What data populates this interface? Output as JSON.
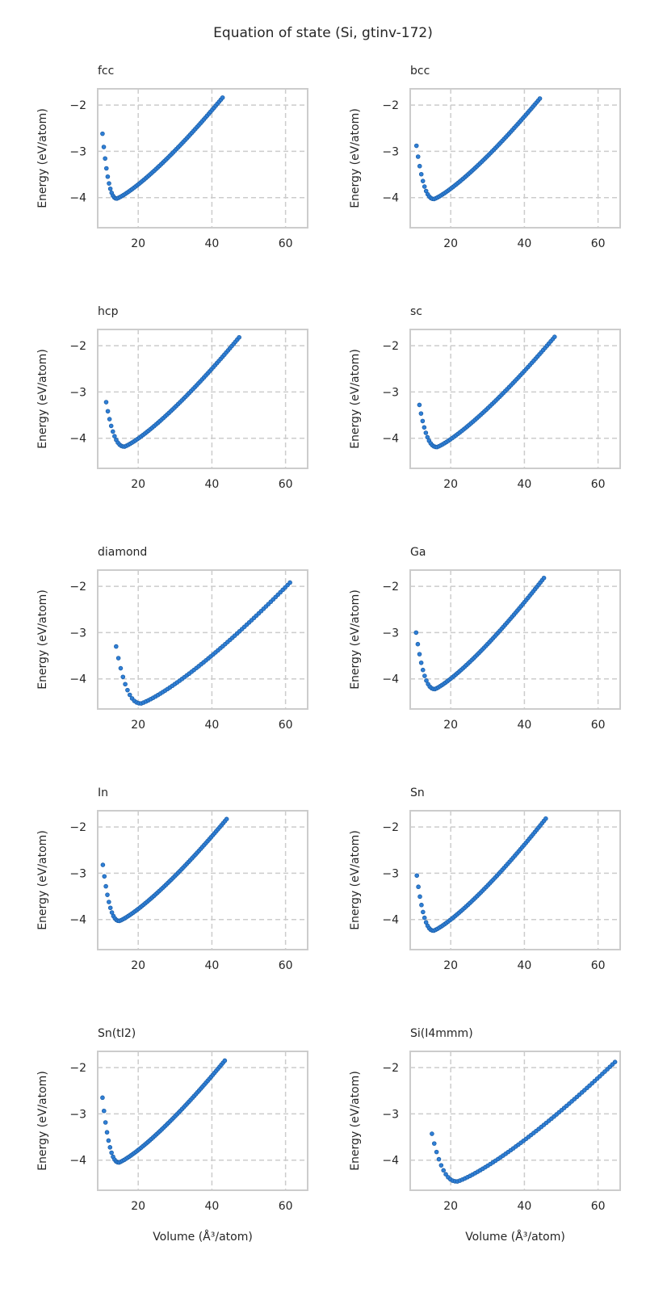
{
  "figure": {
    "title": "Equation of state (Si, gtinv-172)",
    "xlabel": "Volume (Å³/atom)",
    "ylabel": "Energy (eV/atom)"
  },
  "chart_data": [
    {
      "type": "scatter",
      "title": "fcc",
      "xlim": [
        9,
        66
      ],
      "ylim": [
        -4.65,
        -1.65
      ],
      "xticks": [
        20,
        40,
        60
      ],
      "yticks": [
        -4,
        -3,
        -2
      ],
      "grid": true,
      "v_min": 10.3,
      "v_eq": 14.2,
      "v_max": 42.9,
      "e_start": -2.62,
      "e_min": -4.02,
      "e_end": -1.84
    },
    {
      "type": "scatter",
      "title": "bcc",
      "xlim": [
        9,
        66
      ],
      "ylim": [
        -4.65,
        -1.65
      ],
      "xticks": [
        20,
        40,
        60
      ],
      "yticks": [
        -4,
        -3,
        -2
      ],
      "grid": true,
      "v_min": 10.7,
      "v_eq": 15.5,
      "v_max": 44.2,
      "e_start": -2.88,
      "e_min": -4.03,
      "e_end": -1.86
    },
    {
      "type": "scatter",
      "title": "hcp",
      "xlim": [
        9,
        66
      ],
      "ylim": [
        -4.65,
        -1.65
      ],
      "xticks": [
        20,
        40,
        60
      ],
      "yticks": [
        -4,
        -3,
        -2
      ],
      "grid": true,
      "v_min": 11.3,
      "v_eq": 16.3,
      "v_max": 47.4,
      "e_start": -3.22,
      "e_min": -4.18,
      "e_end": -1.82
    },
    {
      "type": "scatter",
      "title": "sc",
      "xlim": [
        9,
        66
      ],
      "ylim": [
        -4.65,
        -1.65
      ],
      "xticks": [
        20,
        40,
        60
      ],
      "yticks": [
        -4,
        -3,
        -2
      ],
      "grid": true,
      "v_min": 11.5,
      "v_eq": 16.3,
      "v_max": 48.2,
      "e_start": -3.28,
      "e_min": -4.19,
      "e_end": -1.81
    },
    {
      "type": "scatter",
      "title": "diamond",
      "xlim": [
        9,
        66
      ],
      "ylim": [
        -4.65,
        -1.65
      ],
      "xticks": [
        20,
        40,
        60
      ],
      "yticks": [
        -4,
        -3,
        -2
      ],
      "grid": true,
      "v_min": 14.0,
      "v_eq": 20.8,
      "v_max": 61.2,
      "e_start": -3.3,
      "e_min": -4.53,
      "e_end": -1.92
    },
    {
      "type": "scatter",
      "title": "Ga",
      "xlim": [
        9,
        66
      ],
      "ylim": [
        -4.65,
        -1.65
      ],
      "xticks": [
        20,
        40,
        60
      ],
      "yticks": [
        -4,
        -3,
        -2
      ],
      "grid": true,
      "v_min": 10.6,
      "v_eq": 15.7,
      "v_max": 45.3,
      "e_start": -3.0,
      "e_min": -4.22,
      "e_end": -1.82
    },
    {
      "type": "scatter",
      "title": "In",
      "xlim": [
        9,
        66
      ],
      "ylim": [
        -4.65,
        -1.65
      ],
      "xticks": [
        20,
        40,
        60
      ],
      "yticks": [
        -4,
        -3,
        -2
      ],
      "grid": true,
      "v_min": 10.4,
      "v_eq": 14.9,
      "v_max": 44.0,
      "e_start": -2.82,
      "e_min": -4.03,
      "e_end": -1.83
    },
    {
      "type": "scatter",
      "title": "Sn",
      "xlim": [
        9,
        66
      ],
      "ylim": [
        -4.65,
        -1.65
      ],
      "xticks": [
        20,
        40,
        60
      ],
      "yticks": [
        -4,
        -3,
        -2
      ],
      "grid": true,
      "v_min": 10.8,
      "v_eq": 15.4,
      "v_max": 45.8,
      "e_start": -3.05,
      "e_min": -4.24,
      "e_end": -1.82
    },
    {
      "type": "scatter",
      "title": "Sn(tI2)",
      "xlim": [
        9,
        66
      ],
      "ylim": [
        -4.65,
        -1.65
      ],
      "xticks": [
        20,
        40,
        60
      ],
      "yticks": [
        -4,
        -3,
        -2
      ],
      "grid": true,
      "v_min": 10.3,
      "v_eq": 14.8,
      "v_max": 43.5,
      "e_start": -2.65,
      "e_min": -4.05,
      "e_end": -1.85
    },
    {
      "type": "scatter",
      "title": "Si(I4mmm)",
      "xlim": [
        9,
        66
      ],
      "ylim": [
        -4.65,
        -1.65
      ],
      "xticks": [
        20,
        40,
        60
      ],
      "yticks": [
        -4,
        -3,
        -2
      ],
      "grid": true,
      "v_min": 14.9,
      "v_eq": 21.8,
      "v_max": 64.6,
      "e_start": -3.43,
      "e_min": -4.46,
      "e_end": -1.88
    }
  ]
}
